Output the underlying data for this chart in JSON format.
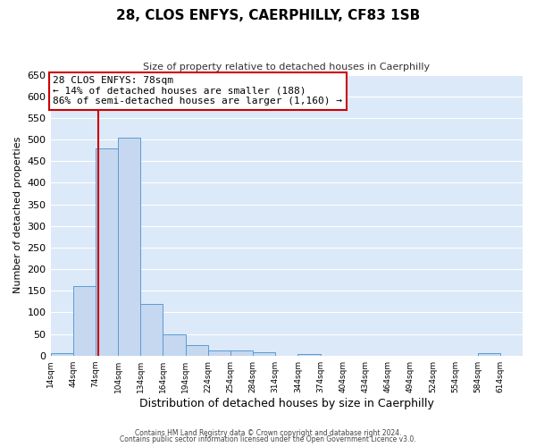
{
  "title": "28, CLOS ENFYS, CAERPHILLY, CF83 1SB",
  "subtitle": "Size of property relative to detached houses in Caerphilly",
  "xlabel": "Distribution of detached houses by size in Caerphilly",
  "ylabel": "Number of detached properties",
  "bin_edges": [
    14,
    44,
    74,
    104,
    134,
    164,
    194,
    224,
    254,
    284,
    314,
    344,
    374,
    404,
    434,
    464,
    494,
    524,
    554,
    584,
    614
  ],
  "bin_heights": [
    5,
    160,
    480,
    505,
    120,
    50,
    25,
    12,
    12,
    8,
    0,
    3,
    0,
    0,
    0,
    0,
    0,
    0,
    0,
    5
  ],
  "bar_color": "#c5d8f0",
  "bar_edge_color": "#5b9bd5",
  "vline_color": "#cc0000",
  "vline_x": 78,
  "annotation_text": "28 CLOS ENFYS: 78sqm\n← 14% of detached houses are smaller (188)\n86% of semi-detached houses are larger (1,160) →",
  "annotation_box_color": "#ffffff",
  "annotation_box_edge_color": "#cc0000",
  "ylim": [
    0,
    650
  ],
  "yticks": [
    0,
    50,
    100,
    150,
    200,
    250,
    300,
    350,
    400,
    450,
    500,
    550,
    600,
    650
  ],
  "tick_labels": [
    "14sqm",
    "44sqm",
    "74sqm",
    "104sqm",
    "134sqm",
    "164sqm",
    "194sqm",
    "224sqm",
    "254sqm",
    "284sqm",
    "314sqm",
    "344sqm",
    "374sqm",
    "404sqm",
    "434sqm",
    "464sqm",
    "494sqm",
    "524sqm",
    "554sqm",
    "584sqm",
    "614sqm"
  ],
  "footer_line1": "Contains HM Land Registry data © Crown copyright and database right 2024.",
  "footer_line2": "Contains public sector information licensed under the Open Government Licence v3.0.",
  "background_color": "#dce9f8",
  "fig_background": "#ffffff",
  "grid_color": "#ffffff",
  "title_fontsize": 11,
  "subtitle_fontsize": 8,
  "ylabel_fontsize": 8,
  "xlabel_fontsize": 9
}
